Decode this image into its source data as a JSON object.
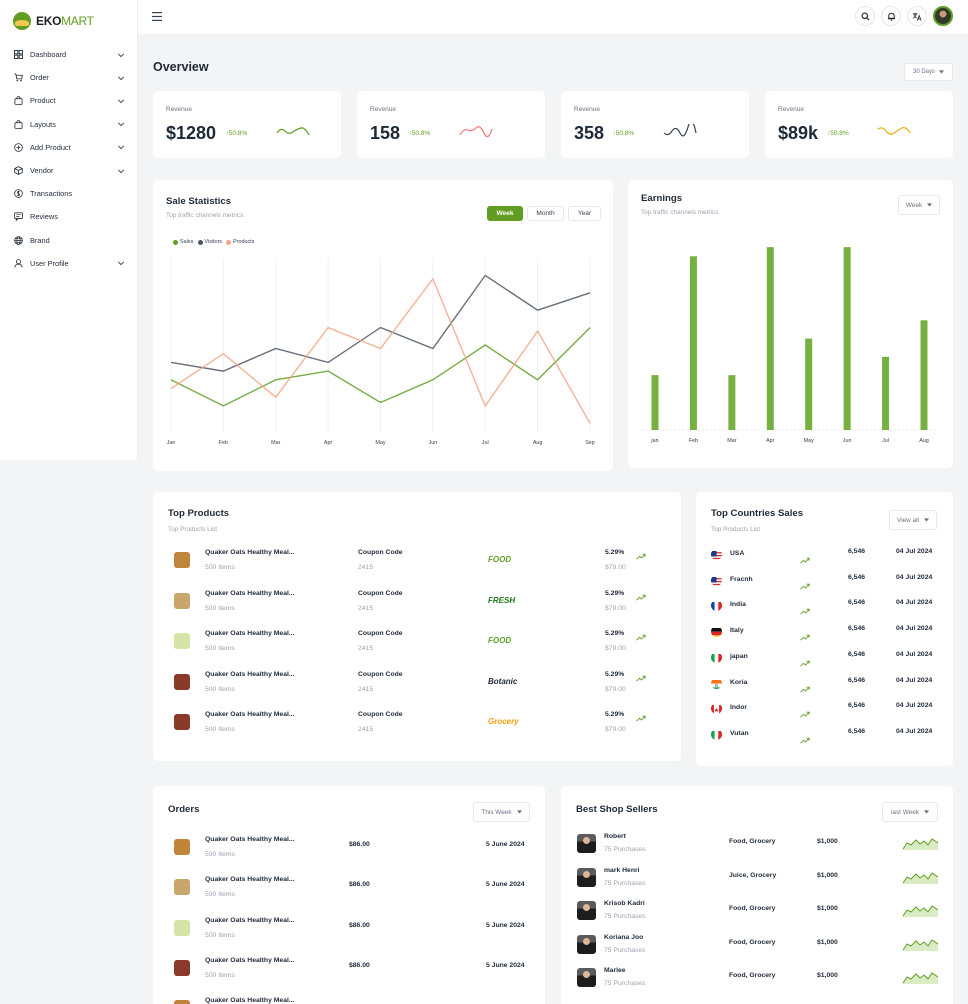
{
  "brand": {
    "name_bold": "EKO",
    "name_light": "MART"
  },
  "sidebar": {
    "items": [
      {
        "label": "Dashboard",
        "icon": "grid-icon",
        "has_chevron": true
      },
      {
        "label": "Order",
        "icon": "cart-icon",
        "has_chevron": true
      },
      {
        "label": "Product",
        "icon": "bag-icon",
        "has_chevron": true
      },
      {
        "label": "Layouts",
        "icon": "bag-icon",
        "has_chevron": true
      },
      {
        "label": "Add Product",
        "icon": "plus-circle-icon",
        "has_chevron": true
      },
      {
        "label": "Vendor",
        "icon": "box-icon",
        "has_chevron": true
      },
      {
        "label": "Transactions",
        "icon": "dollar-icon",
        "has_chevron": false
      },
      {
        "label": "Reviews",
        "icon": "review-icon",
        "has_chevron": false
      },
      {
        "label": "Brand",
        "icon": "globe-icon",
        "has_chevron": false
      },
      {
        "label": "User Profile",
        "icon": "user-icon",
        "has_chevron": true
      }
    ]
  },
  "topbar": {
    "icons": [
      "search-icon",
      "bell-icon",
      "translate-icon"
    ]
  },
  "overview": {
    "title": "Overview",
    "range": "30 Days"
  },
  "stats": [
    {
      "label": "Revenue",
      "value": "$1280",
      "change": "50.8%",
      "spark_color": "#629d23"
    },
    {
      "label": "Revenue",
      "value": "158",
      "change": "50.8%",
      "spark_color": "#f87171"
    },
    {
      "label": "Revenue",
      "value": "358",
      "change": "50.8%",
      "spark_color": "#374151"
    },
    {
      "label": "Revenue",
      "value": "$89k",
      "change": "50.8%",
      "spark_color": "#eab308"
    }
  ],
  "sale_statistics": {
    "title": "Sale Statistics",
    "subtitle": "Top traffic channels metrics.",
    "tabs": [
      "Week",
      "Month",
      "Year"
    ],
    "active_tab": "Week"
  },
  "earnings": {
    "title": "Earnings",
    "subtitle": "Top traffic channels metrics.",
    "range": "Week"
  },
  "chart_data": [
    {
      "type": "line",
      "x": [
        "Jan",
        "Feb",
        "Mar",
        "Apr",
        "May",
        "Jun",
        "Jul",
        "Aug",
        "Sep"
      ],
      "series": [
        {
          "name": "Sales",
          "color": "#629d23",
          "values": [
            30,
            15,
            30,
            35,
            17,
            30,
            50,
            30,
            60
          ]
        },
        {
          "name": "Visitors",
          "color": "#4b5563",
          "values": [
            40,
            35,
            48,
            40,
            60,
            48,
            90,
            70,
            80
          ]
        },
        {
          "name": "Products",
          "color": "#f4a582",
          "values": [
            25,
            45,
            20,
            60,
            48,
            88,
            15,
            58,
            5
          ]
        }
      ],
      "ylim": [
        0,
        100
      ],
      "grid": "vertical",
      "legend": "top-left"
    },
    {
      "type": "bar",
      "categories": [
        "jan",
        "Feb",
        "Mar",
        "Apr",
        "May",
        "Jun",
        "Jul",
        "Aug"
      ],
      "values": [
        30,
        95,
        30,
        100,
        50,
        100,
        40,
        60
      ],
      "color": "#76b041",
      "ylim": [
        0,
        105
      ]
    }
  ],
  "top_products": {
    "title": "Top Products",
    "subtitle": "Top Products List",
    "rows": [
      {
        "name": "Quaker Oats Healthy Meal...",
        "qty": "500 Items",
        "code_label": "Coupon Code",
        "code": "2415",
        "brand": "FOOD",
        "brand_color": "#629d23",
        "pct": "5.29%",
        "price": "$79.00",
        "thumb": "#c0843b"
      },
      {
        "name": "Quaker Oats Healthy Meal...",
        "qty": "500 Items",
        "code_label": "Coupon Code",
        "code": "2415",
        "brand": "FRESH",
        "brand_color": "#1f7a1f",
        "pct": "5.29%",
        "price": "$79.00",
        "thumb": "#c9a66b"
      },
      {
        "name": "Quaker Oats Healthy Meal...",
        "qty": "500 Items",
        "code_label": "Coupon Code",
        "code": "2415",
        "brand": "FOOD",
        "brand_color": "#629d23",
        "pct": "5.29%",
        "price": "$79.00",
        "thumb": "#d7e4a8"
      },
      {
        "name": "Quaker Oats Healthy Meal...",
        "qty": "500 Items",
        "code_label": "Coupon Code",
        "code": "2415",
        "brand": "Botanic",
        "brand_color": "#1f2937",
        "pct": "5.29%",
        "price": "$79.00",
        "thumb": "#8b3a2a"
      },
      {
        "name": "Quaker Oats Healthy Meal...",
        "qty": "500 Items",
        "code_label": "Coupon Code",
        "code": "2415",
        "brand": "Grocery",
        "brand_color": "#f59e0b",
        "pct": "5.29%",
        "price": "$79.00",
        "thumb": "#8b3a2a"
      }
    ]
  },
  "top_countries": {
    "title": "Top Countries Sales",
    "subtitle": "Top Products List",
    "view_all": "View all",
    "rows": [
      {
        "country": "USA",
        "flag": "us",
        "value": "6,546",
        "date": "04 Jul 2024"
      },
      {
        "country": "Fracnh",
        "flag": "us",
        "value": "6,546",
        "date": "04 Jul 2024"
      },
      {
        "country": "India",
        "flag": "fr",
        "value": "6,546",
        "date": "04 Jul 2024"
      },
      {
        "country": "Italy",
        "flag": "de",
        "value": "6,546",
        "date": "04 Jul 2024"
      },
      {
        "country": "japan",
        "flag": "it",
        "value": "6,546",
        "date": "04 Jul 2024"
      },
      {
        "country": "Koria",
        "flag": "in",
        "value": "6,546",
        "date": "04 Jul 2024"
      },
      {
        "country": "Indor",
        "flag": "ca",
        "value": "6,546",
        "date": "04 Jul 2024"
      },
      {
        "country": "Vutan",
        "flag": "it",
        "value": "6,546",
        "date": "04 Jul 2024"
      }
    ]
  },
  "orders": {
    "title": "Orders",
    "range": "This Week",
    "rows": [
      {
        "name": "Quaker Oats Healthy Meal...",
        "qty": "500 Items",
        "price": "$86.00",
        "date": "5 June 2024",
        "thumb": "#c0843b"
      },
      {
        "name": "Quaker Oats Healthy Meal...",
        "qty": "500 Items",
        "price": "$86.00",
        "date": "5 June 2024",
        "thumb": "#c9a66b"
      },
      {
        "name": "Quaker Oats Healthy Meal...",
        "qty": "500 Items",
        "price": "$86.00",
        "date": "5 June 2024",
        "thumb": "#d7e4a8"
      },
      {
        "name": "Quaker Oats Healthy Meal...",
        "qty": "500 Items",
        "price": "$86.00",
        "date": "5 June 2024",
        "thumb": "#8b3a2a"
      },
      {
        "name": "Quaker Oats Healthy Meal...",
        "qty": "",
        "price": "",
        "date": "",
        "thumb": "#c0843b"
      }
    ]
  },
  "best_sellers": {
    "title": "Best Shop Sellers",
    "range": "last Week",
    "rows": [
      {
        "name": "Robert",
        "purchases": "75 Purchases",
        "category": "Food, Grocery",
        "amount": "$1,000"
      },
      {
        "name": "mark Henri",
        "purchases": "75 Purchases",
        "category": "Juice, Grocery",
        "amount": "$1,000"
      },
      {
        "name": "Krisob Kadri",
        "purchases": "75 Purchases",
        "category": "Food, Grocery",
        "amount": "$1,000"
      },
      {
        "name": "Koriana Joo",
        "purchases": "75 Purchases",
        "category": "Food, Grocery",
        "amount": "$1,000"
      },
      {
        "name": "Marlee",
        "purchases": "75 Purchases",
        "category": "Food, Grocery",
        "amount": "$1,000"
      }
    ]
  }
}
